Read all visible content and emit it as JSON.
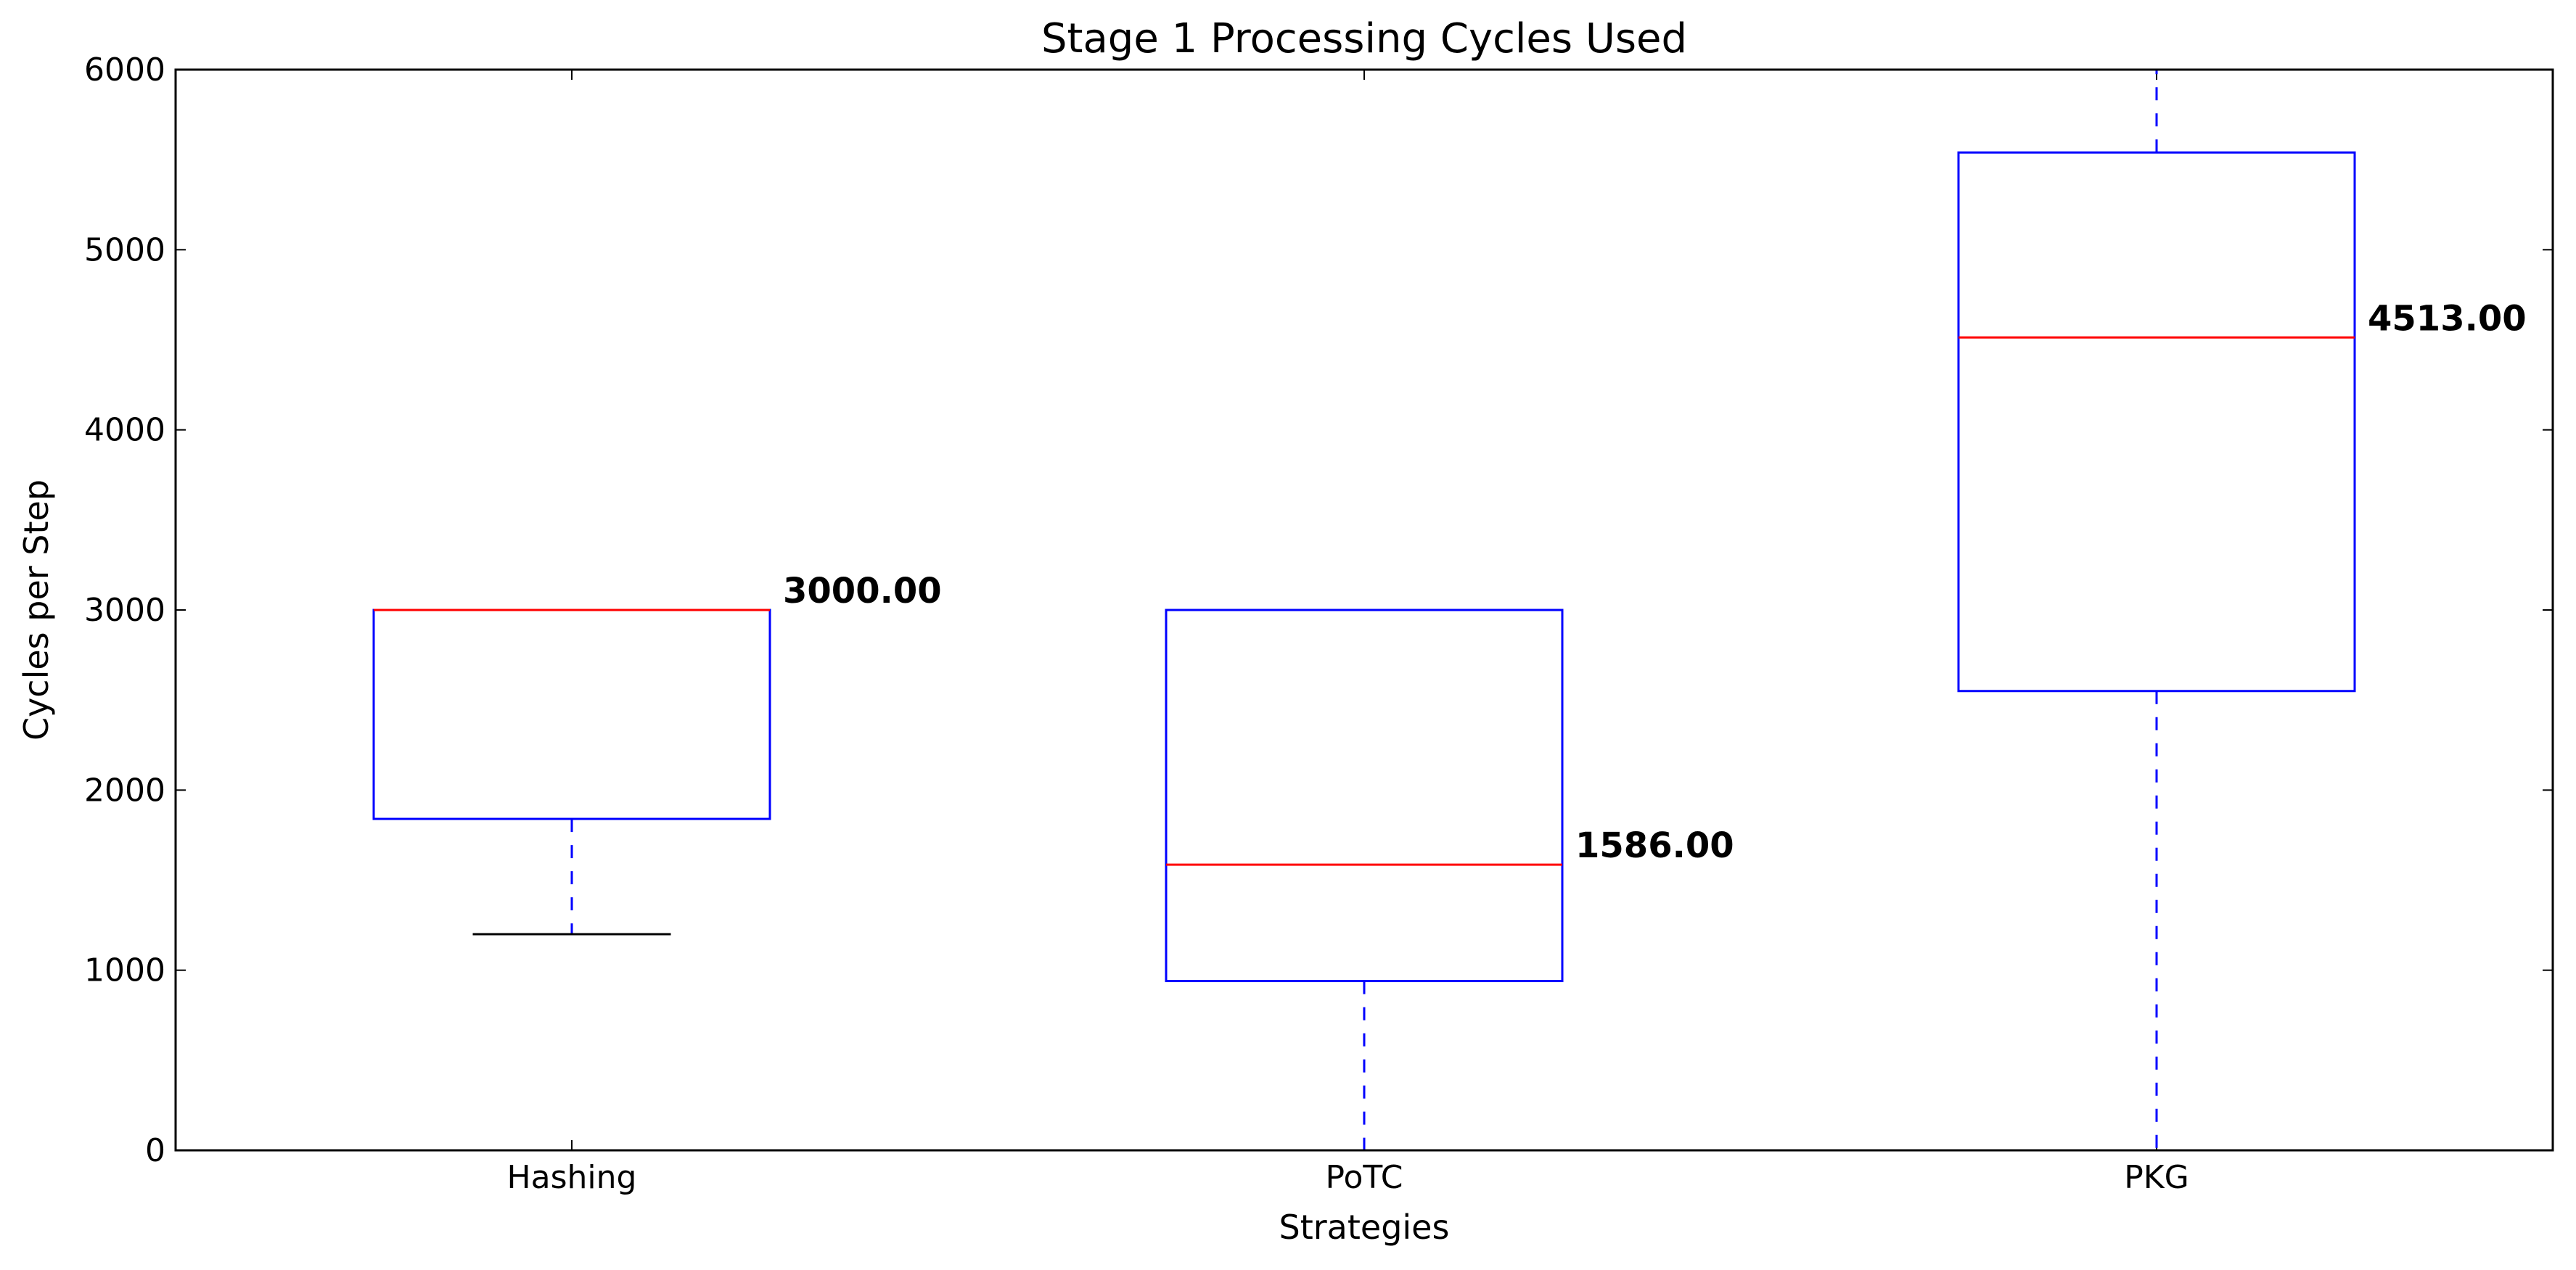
{
  "chart_data": {
    "type": "box",
    "title": "Stage 1 Processing Cycles Used",
    "xlabel": "Strategies",
    "ylabel": "Cycles per Step",
    "ylim": [
      0,
      6000
    ],
    "yticks": [
      0,
      1000,
      2000,
      3000,
      4000,
      5000,
      6000
    ],
    "categories": [
      "Hashing",
      "PoTC",
      "PKG"
    ],
    "boxes": [
      {
        "name": "Hashing",
        "whisker_low": 1200,
        "q1": 1840,
        "median": 3000,
        "q3": 3000,
        "whisker_high": 3000,
        "label": "3000.00"
      },
      {
        "name": "PoTC",
        "whisker_low": 0,
        "q1": 940,
        "median": 1586,
        "q3": 3000,
        "whisker_high": 3000,
        "label": "1586.00"
      },
      {
        "name": "PKG",
        "whisker_low": 0,
        "q1": 2550,
        "median": 4513,
        "q3": 5540,
        "whisker_high": 6000,
        "label": "4513.00"
      }
    ],
    "colors": {
      "box": "#0000ff",
      "median": "#ff0000",
      "cap": "#000000"
    },
    "grid": false,
    "legend": "none"
  }
}
